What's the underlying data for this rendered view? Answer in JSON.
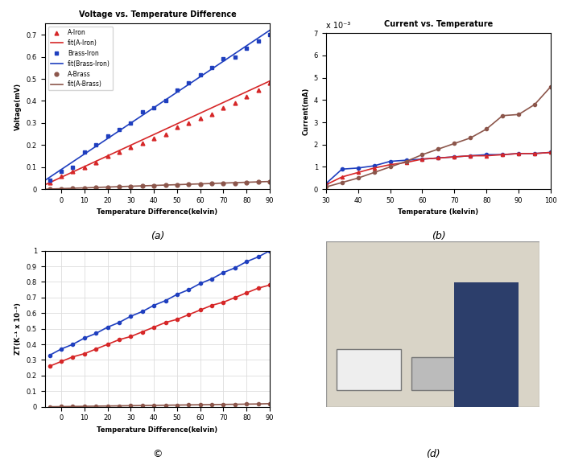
{
  "chart_data": [
    {
      "type": "scatter",
      "caption": "(a)",
      "title": "Voltage vs. Temperature Difference",
      "x_label": "Temperature Difference(kelvin)",
      "y_label": "Voltage(mV)",
      "xlim": [
        -7,
        90
      ],
      "xticks": [
        0,
        10,
        20,
        30,
        40,
        50,
        60,
        70,
        80,
        90
      ],
      "ylim": [
        0,
        0.75
      ],
      "yticks": [
        0,
        0.1,
        0.2,
        0.3,
        0.4,
        0.5,
        0.6,
        0.7
      ],
      "grid": false,
      "legend": "upper left",
      "series": [
        {
          "name": "A-Iron",
          "type": "scatter",
          "color": "#d62728",
          "marker": "triangle",
          "x": [
            -5,
            0,
            5,
            10,
            15,
            20,
            25,
            30,
            35,
            40,
            45,
            50,
            55,
            60,
            65,
            70,
            75,
            80,
            85,
            90
          ],
          "values": [
            0.03,
            0.06,
            0.08,
            0.1,
            0.12,
            0.15,
            0.17,
            0.19,
            0.21,
            0.23,
            0.25,
            0.28,
            0.3,
            0.32,
            0.34,
            0.37,
            0.39,
            0.42,
            0.45,
            0.48
          ]
        },
        {
          "name": "fit(A-Iron)",
          "type": "line",
          "color": "#d62728",
          "line_style": "solid",
          "x": [
            -7,
            90
          ],
          "values": [
            0.02,
            0.49
          ]
        },
        {
          "name": "Brass-Iron",
          "type": "scatter",
          "color": "#1f3fbf",
          "marker": "square",
          "x": [
            -5,
            0,
            5,
            10,
            15,
            20,
            25,
            30,
            35,
            40,
            45,
            50,
            55,
            60,
            65,
            70,
            75,
            80,
            85,
            90
          ],
          "values": [
            0.04,
            0.08,
            0.1,
            0.17,
            0.2,
            0.24,
            0.27,
            0.3,
            0.35,
            0.37,
            0.4,
            0.45,
            0.48,
            0.52,
            0.55,
            0.59,
            0.6,
            0.64,
            0.67,
            0.7
          ]
        },
        {
          "name": "fit(Brass-Iron)",
          "type": "line",
          "color": "#1f3fbf",
          "line_style": "solid",
          "x": [
            -7,
            90
          ],
          "values": [
            0.04,
            0.72
          ]
        },
        {
          "name": "A-Brass",
          "type": "scatter",
          "color": "#8c564b",
          "marker": "circle",
          "x": [
            -5,
            0,
            5,
            10,
            15,
            20,
            25,
            30,
            35,
            40,
            45,
            50,
            55,
            60,
            65,
            70,
            75,
            80,
            85,
            90
          ],
          "values": [
            0.0,
            0.002,
            0.004,
            0.006,
            0.007,
            0.009,
            0.011,
            0.012,
            0.014,
            0.016,
            0.018,
            0.019,
            0.021,
            0.023,
            0.025,
            0.026,
            0.028,
            0.03,
            0.032,
            0.034
          ]
        },
        {
          "name": "fit(A-Brass)",
          "type": "line",
          "color": "#8c564b",
          "line_style": "solid",
          "x": [
            -7,
            90
          ],
          "values": [
            0.0,
            0.035
          ]
        }
      ]
    },
    {
      "type": "line",
      "caption": "(b)",
      "title": "Current vs. Temperature",
      "x_label": "Temperature (kelvin)",
      "y_label": "Current(mA)",
      "annotation": "x 10⁻³",
      "xlim": [
        30,
        100
      ],
      "xticks": [
        30,
        40,
        50,
        60,
        70,
        80,
        90,
        100
      ],
      "ylim": [
        0,
        0.007
      ],
      "yticks": [
        {
          "value": 0,
          "label": "0"
        },
        {
          "value": 0.001,
          "label": "1"
        },
        {
          "value": 0.002,
          "label": "2"
        },
        {
          "value": 0.003,
          "label": "3"
        },
        {
          "value": 0.004,
          "label": "4"
        },
        {
          "value": 0.005,
          "label": "5"
        },
        {
          "value": 0.006,
          "label": "6"
        },
        {
          "value": 0.007,
          "label": "7"
        }
      ],
      "grid": false,
      "x": [
        30,
        35,
        40,
        45,
        50,
        55,
        60,
        65,
        70,
        75,
        80,
        85,
        90,
        95,
        100
      ],
      "series": [
        {
          "color": "#1f3fbf",
          "marker": "circle",
          "values": [
            0.00025,
            0.0009,
            0.00095,
            0.00105,
            0.00125,
            0.0013,
            0.00135,
            0.0014,
            0.00145,
            0.0015,
            0.00155,
            0.00155,
            0.0016,
            0.0016,
            0.00165
          ]
        },
        {
          "color": "#d62728",
          "marker": "triangle",
          "values": [
            0.0002,
            0.00055,
            0.00075,
            0.00095,
            0.0011,
            0.0012,
            0.00135,
            0.0014,
            0.00145,
            0.0015,
            0.0015,
            0.00155,
            0.0016,
            0.0016,
            0.00165
          ]
        },
        {
          "color": "#8c564b",
          "marker": "circle",
          "values": [
            0.0001,
            0.0003,
            0.0005,
            0.00075,
            0.001,
            0.00125,
            0.00155,
            0.0018,
            0.00205,
            0.0023,
            0.0027,
            0.0033,
            0.00335,
            0.0038,
            0.0046
          ]
        }
      ]
    },
    {
      "type": "line",
      "caption": "©",
      "x_label": "Temperature Difference(kelvin)",
      "y_label": "ZT(K⁻¹ x 10⁻³)",
      "xlim": [
        -7,
        90
      ],
      "xticks": [
        0,
        10,
        20,
        30,
        40,
        50,
        60,
        70,
        80,
        90
      ],
      "ylim": [
        0,
        1
      ],
      "yticks": [
        0,
        0.1,
        0.2,
        0.3,
        0.4,
        0.5,
        0.6,
        0.7,
        0.8,
        0.9,
        1
      ],
      "grid": true,
      "x": [
        -5,
        0,
        5,
        10,
        15,
        20,
        25,
        30,
        35,
        40,
        45,
        50,
        55,
        60,
        65,
        70,
        75,
        80,
        85,
        90
      ],
      "series": [
        {
          "color": "#1f3fbf",
          "marker": "circle",
          "values": [
            0.33,
            0.37,
            0.4,
            0.44,
            0.47,
            0.51,
            0.54,
            0.58,
            0.61,
            0.65,
            0.68,
            0.72,
            0.75,
            0.79,
            0.82,
            0.86,
            0.89,
            0.93,
            0.96,
            1.0
          ]
        },
        {
          "color": "#d62728",
          "marker": "circle",
          "values": [
            0.26,
            0.29,
            0.32,
            0.34,
            0.37,
            0.4,
            0.43,
            0.45,
            0.48,
            0.51,
            0.54,
            0.56,
            0.59,
            0.62,
            0.65,
            0.67,
            0.7,
            0.73,
            0.76,
            0.78
          ]
        },
        {
          "color": "#8c564b",
          "marker": "circle",
          "values": [
            0.0,
            0.001,
            0.002,
            0.003,
            0.004,
            0.005,
            0.006,
            0.007,
            0.008,
            0.009,
            0.01,
            0.011,
            0.012,
            0.013,
            0.014,
            0.015,
            0.016,
            0.017,
            0.018,
            0.02
          ]
        }
      ]
    }
  ],
  "photo": {
    "caption": "(d)"
  }
}
